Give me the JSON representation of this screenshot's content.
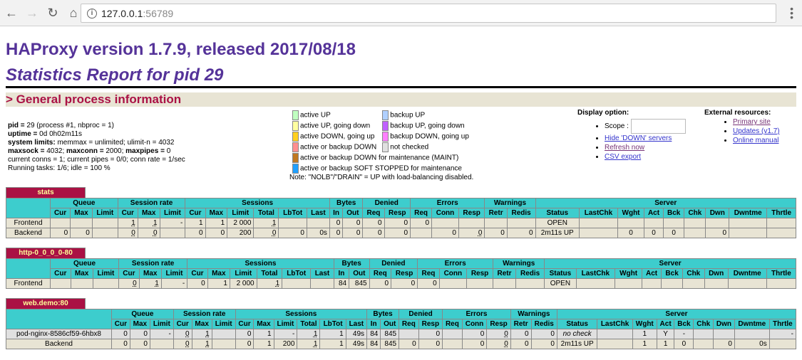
{
  "browser": {
    "url_host": "127.0.0.1",
    "url_port": ":56789"
  },
  "header": {
    "title": "HAProxy version 1.7.9, released 2017/08/18",
    "subtitle": "Statistics Report for pid 29",
    "section": "> General process information"
  },
  "process": {
    "pid_label": "pid =",
    "pid_value": " 29 (process #1, nbproc = 1)",
    "uptime_label": "uptime =",
    "uptime_value": " 0d 0h02m11s",
    "limits_label": "system limits:",
    "limits_value": " memmax = unlimited; ulimit-n = 4032",
    "maxsock_label": "maxsock =",
    "maxsock_value": " 4032; ",
    "maxconn_label": "maxconn =",
    "maxconn_value": " 2000; ",
    "maxpipes_label": "maxpipes =",
    "maxpipes_value": " 0",
    "conns": "current conns = 1; current pipes = 0/0; conn rate = 1/sec",
    "tasks": "Running tasks: 1/6; idle = 100 %"
  },
  "legend": {
    "items": [
      {
        "label": "active UP",
        "color": "#c0ffc0"
      },
      {
        "label": "backup UP",
        "color": "#b0d0ff"
      },
      {
        "label": "active UP, going down",
        "color": "#ffffa0"
      },
      {
        "label": "backup UP, going down",
        "color": "#c060ff"
      },
      {
        "label": "active DOWN, going up",
        "color": "#ffd020"
      },
      {
        "label": "backup DOWN, going up",
        "color": "#ff80ff"
      },
      {
        "label": "active or backup DOWN",
        "color": "#ff9090"
      },
      {
        "label": "not checked",
        "color": "#e0e0e0"
      },
      {
        "label": "active or backup DOWN for maintenance (MAINT)",
        "color": "#c07820"
      },
      {
        "label": "active or backup SOFT STOPPED for maintenance",
        "color": "#20a0ff"
      }
    ],
    "note": "Note: \"NOLB\"/\"DRAIN\" = UP with load-balancing disabled."
  },
  "display_options": {
    "title": "Display option:",
    "scope_label": "Scope :",
    "scope_value": "",
    "hide_down": "Hide 'DOWN' servers",
    "refresh": "Refresh now",
    "csv": "CSV export"
  },
  "external": {
    "title": "External resources:",
    "primary": "Primary site",
    "updates": "Updates (v1.7)",
    "manual": "Online manual"
  },
  "columns": {
    "groups": [
      "Queue",
      "Session rate",
      "Sessions",
      "Bytes",
      "Denied",
      "Errors",
      "Warnings",
      "Server"
    ],
    "sub": [
      "Cur",
      "Max",
      "Limit",
      "Cur",
      "Max",
      "Limit",
      "Cur",
      "Max",
      "Limit",
      "Total",
      "LbTot",
      "Last",
      "In",
      "Out",
      "Req",
      "Resp",
      "Req",
      "Conn",
      "Resp",
      "Retr",
      "Redis",
      "Status",
      "LastChk",
      "Wght",
      "Act",
      "Bck",
      "Chk",
      "Dwn",
      "Dwntme",
      "Thrtle"
    ]
  },
  "proxies": [
    {
      "name": "stats",
      "rows": [
        {
          "label": "Frontend",
          "cells": [
            "",
            "",
            "",
            "1",
            "1",
            "-",
            "1",
            "1",
            "2 000",
            "1",
            "",
            "",
            "0",
            "0",
            "0",
            "0",
            "0",
            "",
            "",
            "",
            "",
            "OPEN",
            "",
            "",
            "",
            "",
            "",
            "",
            "",
            ""
          ]
        },
        {
          "label": "Backend",
          "cells": [
            "0",
            "0",
            "",
            "0",
            "0",
            "",
            "0",
            "0",
            "200",
            "0",
            "0",
            "0s",
            "0",
            "0",
            "0",
            "0",
            "",
            "0",
            "0",
            "0",
            "0",
            "2m11s UP",
            "",
            "0",
            "0",
            "0",
            "",
            "0",
            "",
            ""
          ]
        }
      ]
    },
    {
      "name": "http-0_0_0_0-80",
      "rows": [
        {
          "label": "Frontend",
          "cells": [
            "",
            "",
            "",
            "0",
            "1",
            "-",
            "0",
            "1",
            "2 000",
            "1",
            "",
            "",
            "84",
            "845",
            "0",
            "0",
            "0",
            "",
            "",
            "",
            "",
            "OPEN",
            "",
            "",
            "",
            "",
            "",
            "",
            "",
            ""
          ]
        }
      ]
    },
    {
      "name": "web.demo:80",
      "rows": [
        {
          "label": "pod-nginx-8586cf59-6hbx8",
          "cells": [
            "0",
            "0",
            "-",
            "0",
            "1",
            "",
            "0",
            "1",
            "-",
            "1",
            "1",
            "49s",
            "84",
            "845",
            "",
            "0",
            "",
            "0",
            "0",
            "0",
            "0",
            "no check",
            "",
            "1",
            "Y",
            "-",
            "",
            "",
            "",
            "-"
          ]
        },
        {
          "label": "Backend",
          "cells": [
            "0",
            "0",
            "",
            "0",
            "1",
            "",
            "0",
            "1",
            "200",
            "1",
            "1",
            "49s",
            "84",
            "845",
            "0",
            "0",
            "",
            "0",
            "0",
            "0",
            "0",
            "2m11s UP",
            "",
            "1",
            "1",
            "0",
            "",
            "0",
            "0s",
            ""
          ]
        }
      ]
    }
  ]
}
